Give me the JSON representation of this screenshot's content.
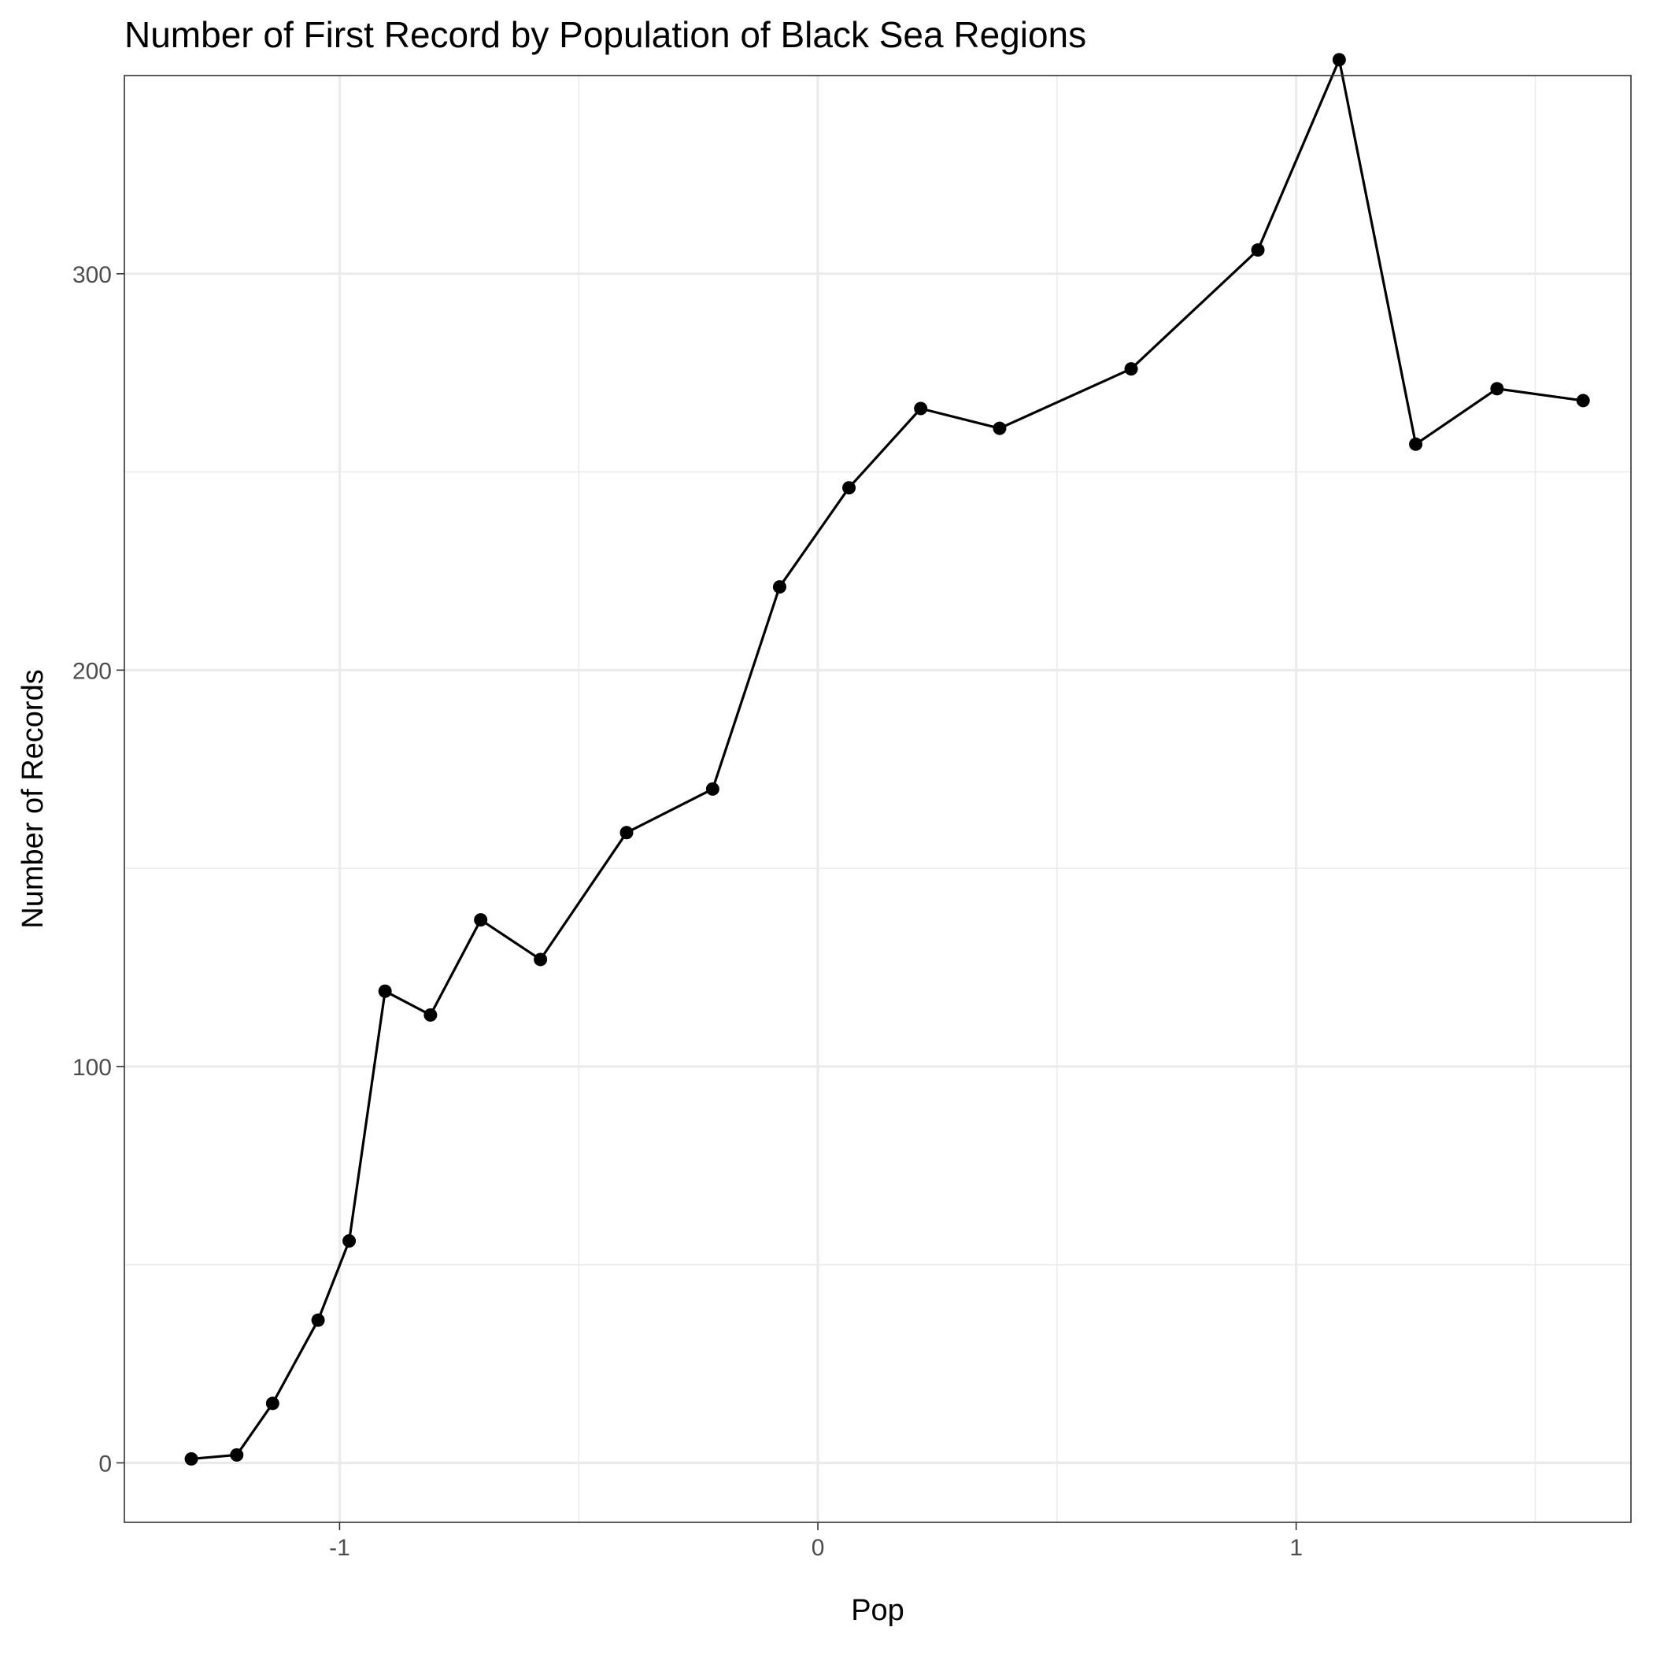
{
  "chart_data": {
    "type": "line",
    "title": "Number of First Record by Population of Black Sea Regions",
    "xlabel": "Pop",
    "ylabel": "Number of Records",
    "xlim": [
      -1.45,
      1.7
    ],
    "ylim": [
      -15,
      350
    ],
    "x_ticks": [
      -1,
      0,
      1
    ],
    "x_tick_labels": [
      "-1",
      "0",
      "1"
    ],
    "x_minor_ticks": [
      -0.5,
      0.5,
      1.5
    ],
    "y_ticks": [
      0,
      100,
      200,
      300
    ],
    "y_tick_labels": [
      "0",
      "100",
      "200",
      "300"
    ],
    "y_minor_ticks": [
      50,
      150,
      250,
      350
    ],
    "grid": true,
    "legend": "none",
    "colors": {
      "line": "#000000",
      "point": "#000000",
      "grid": "#ebebeb",
      "panel_border": "#333333",
      "tick_label": "#4d4d4d"
    },
    "series": [
      {
        "x": [
          -1.31,
          -1.215,
          -1.14,
          -1.045,
          -0.98,
          -0.905,
          -0.81,
          -0.705,
          -0.58,
          -0.4,
          -0.22,
          -0.08,
          0.065,
          0.215,
          0.38,
          0.655,
          0.92,
          1.09,
          1.25,
          1.42,
          1.6
        ],
        "y": [
          1,
          2,
          15,
          36,
          56,
          119,
          113,
          137,
          127,
          159,
          170,
          221,
          246,
          266,
          261,
          276,
          306,
          354,
          257,
          271,
          268
        ]
      }
    ]
  }
}
